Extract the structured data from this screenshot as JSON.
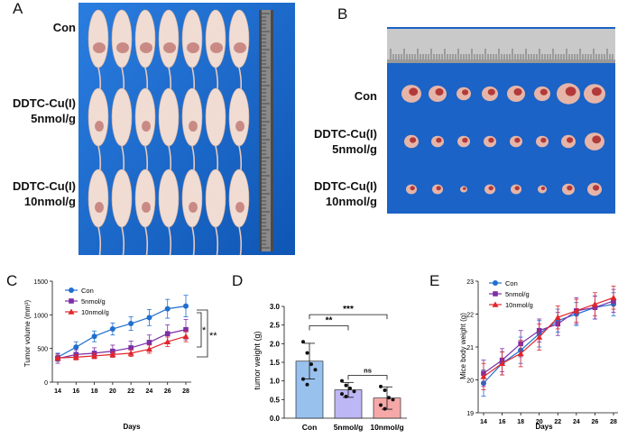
{
  "figure": {
    "panels": {
      "a": "A",
      "b": "B",
      "c": "C",
      "d": "D",
      "e": "E"
    },
    "groups": {
      "con": "Con",
      "low_line1": "DDTC-Cu(I)",
      "low_line2": "5nmol/g",
      "high_line1": "DDTC-Cu(I)",
      "high_line2": "10nmol/g"
    }
  },
  "chart_data": [
    {
      "panel": "C",
      "type": "line",
      "xlabel": "Days",
      "ylabel": "Tumor volume (mm³)",
      "x": [
        14,
        16,
        18,
        20,
        22,
        24,
        26,
        28
      ],
      "xticks": [
        "14",
        "16",
        "18",
        "20",
        "22",
        "24",
        "26",
        "28"
      ],
      "ylim": [
        0,
        1500
      ],
      "yticks": [
        "0",
        "500",
        "1000",
        "1500"
      ],
      "series": [
        {
          "name": "Con",
          "color": "#1f6fcf",
          "marker": "circle",
          "values": [
            370,
            520,
            680,
            790,
            870,
            960,
            1090,
            1130
          ],
          "errors": [
            60,
            80,
            80,
            90,
            100,
            120,
            140,
            160
          ]
        },
        {
          "name": "5nmol/g",
          "color": "#7b2fa6",
          "marker": "square",
          "values": [
            350,
            410,
            430,
            460,
            510,
            590,
            720,
            780
          ],
          "errors": [
            70,
            70,
            80,
            90,
            100,
            110,
            130,
            150
          ]
        },
        {
          "name": "10nmol/g",
          "color": "#e0262b",
          "marker": "triangle",
          "values": [
            360,
            370,
            390,
            410,
            430,
            490,
            600,
            680
          ],
          "errors": [
            40,
            40,
            40,
            40,
            50,
            60,
            70,
            80
          ]
        }
      ],
      "significance": [
        "*",
        "**"
      ]
    },
    {
      "panel": "D",
      "type": "bar",
      "ylabel": "tumor weight (g)",
      "categories": [
        "Con",
        "5nmol/g",
        "10nmol/g"
      ],
      "values": [
        1.53,
        0.76,
        0.54
      ],
      "errors": [
        0.48,
        0.2,
        0.3
      ],
      "colors": [
        "#99c1ee",
        "#bdb7f5",
        "#f6a8a8"
      ],
      "points": [
        [
          2.05,
          1.75,
          1.45,
          1.3,
          1.05,
          0.9
        ],
        [
          1.0,
          0.88,
          0.8,
          0.72,
          0.65,
          0.58
        ],
        [
          0.85,
          0.75,
          0.55,
          0.5,
          0.35,
          0.25
        ]
      ],
      "ylim": [
        0,
        3.0
      ],
      "yticks": [
        "0.0",
        "0.5",
        "1.0",
        "1.5",
        "2.0",
        "2.5",
        "3.0"
      ],
      "comparisons": [
        {
          "from": 0,
          "to": 1,
          "label": "**"
        },
        {
          "from": 0,
          "to": 2,
          "label": "***"
        },
        {
          "from": 1,
          "to": 2,
          "label": "ns"
        }
      ]
    },
    {
      "panel": "E",
      "type": "line",
      "xlabel": "Days",
      "ylabel": "Mice body weight (g)",
      "x": [
        14,
        16,
        18,
        20,
        22,
        24,
        26,
        28
      ],
      "xticks": [
        "14",
        "16",
        "18",
        "20",
        "22",
        "24",
        "26",
        "28"
      ],
      "ylim": [
        19,
        23
      ],
      "yticks": [
        "19",
        "20",
        "21",
        "22",
        "23"
      ],
      "series": [
        {
          "name": "Con",
          "color": "#1f6fcf",
          "marker": "circle",
          "values": [
            19.9,
            20.5,
            20.9,
            21.4,
            21.8,
            22.0,
            22.2,
            22.3
          ],
          "errors": [
            0.4,
            0.35,
            0.4,
            0.4,
            0.35,
            0.35,
            0.35,
            0.35
          ]
        },
        {
          "name": "5nmol/g",
          "color": "#7b2fa6",
          "marker": "square",
          "values": [
            20.2,
            20.6,
            21.1,
            21.5,
            21.7,
            22.1,
            22.2,
            22.4
          ],
          "errors": [
            0.4,
            0.35,
            0.4,
            0.35,
            0.35,
            0.4,
            0.35,
            0.35
          ]
        },
        {
          "name": "10nmol/g",
          "color": "#e0262b",
          "marker": "triangle",
          "values": [
            20.1,
            20.5,
            20.8,
            21.3,
            21.9,
            22.1,
            22.3,
            22.5
          ],
          "errors": [
            0.4,
            0.35,
            0.4,
            0.4,
            0.35,
            0.35,
            0.35,
            0.35
          ]
        }
      ]
    }
  ]
}
